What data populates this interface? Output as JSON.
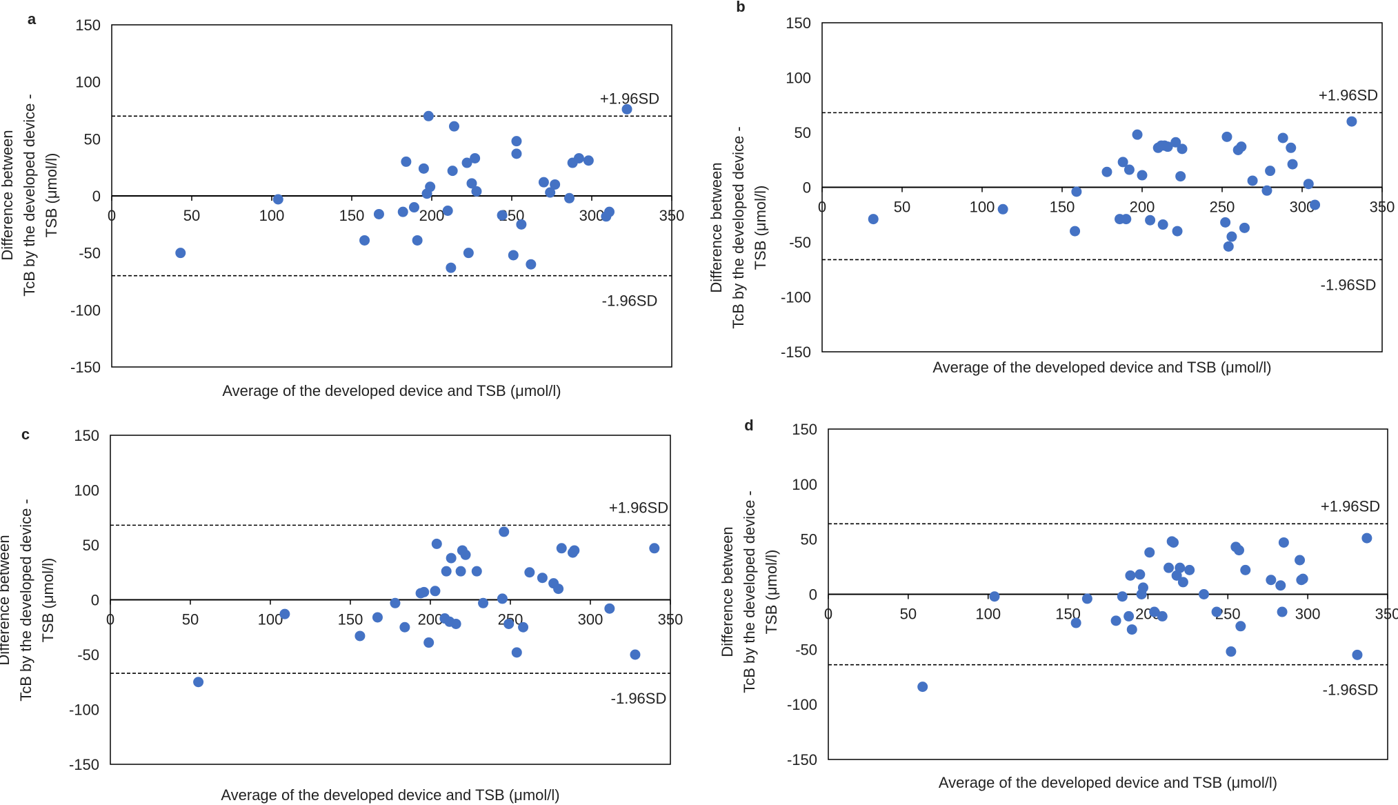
{
  "colors": {
    "point": "#4472C4",
    "axis": "#000000",
    "frame": "#000000",
    "limit_line": "#000000"
  },
  "chart_data": [
    {
      "panel": "a",
      "type": "scatter",
      "xlabel": "Average of the developed device and TSB (μmol/l)",
      "ylabel_lines": [
        "Difference between",
        "TcB by the developed device -",
        "TSB  (μmol/l)"
      ],
      "xlim": [
        0,
        350
      ],
      "ylim": [
        -150,
        150
      ],
      "xticks": [
        "0",
        "50",
        "100",
        "150",
        "200",
        "250",
        "300",
        "350"
      ],
      "yticks": [
        "150",
        "100",
        "50",
        "0",
        "-50",
        "-100",
        "-150"
      ],
      "upper_limit": 70,
      "lower_limit": -70,
      "upper_label": "+1.96SD",
      "lower_label": "-1.96SD",
      "x": [
        43,
        104,
        158,
        167,
        182,
        184,
        189,
        191,
        195,
        197,
        198,
        199,
        210,
        212,
        213,
        214,
        222,
        223,
        225,
        227,
        228,
        244,
        251,
        253,
        253,
        256,
        262,
        270,
        274,
        277,
        286,
        288,
        292,
        298,
        309,
        311,
        322
      ],
      "y": [
        -50,
        -3,
        -39,
        -16,
        -14,
        30,
        -10,
        -39,
        24,
        2,
        70,
        8,
        -13,
        -63,
        22,
        61,
        29,
        -50,
        11,
        33,
        4,
        -17,
        -52,
        48,
        37,
        -25,
        -60,
        12,
        3,
        10,
        -2,
        29,
        33,
        31,
        -18,
        -14,
        76
      ]
    },
    {
      "panel": "b",
      "type": "scatter",
      "xlabel": "Average of the developed device and TSB (μmol/l)",
      "ylabel_lines": [
        "Difference between",
        "TcB by the developed device -",
        "TSB  (μmol/l)"
      ],
      "xlim": [
        0,
        350
      ],
      "ylim": [
        -150,
        150
      ],
      "xticks": [
        "0",
        "50",
        "100",
        "150",
        "200",
        "250",
        "300",
        "350"
      ],
      "yticks": [
        "150",
        "100",
        "50",
        "0",
        "-50",
        "-100",
        "-150"
      ],
      "upper_limit": 68,
      "lower_limit": -66,
      "upper_label": "+1.96SD",
      "lower_label": "-1.96SD",
      "x": [
        32,
        113,
        158,
        159,
        178,
        186,
        188,
        190,
        192,
        197,
        200,
        205,
        210,
        212,
        213,
        214,
        216,
        221,
        222,
        224,
        225,
        252,
        253,
        254,
        256,
        260,
        262,
        264,
        269,
        278,
        280,
        288,
        293,
        294,
        304,
        308,
        331
      ],
      "y": [
        -29,
        -20,
        -40,
        -4,
        14,
        -29,
        23,
        -29,
        16,
        48,
        11,
        -30,
        36,
        38,
        -34,
        38,
        37,
        41,
        -40,
        10,
        35,
        -32,
        46,
        -54,
        -45,
        34,
        37,
        -37,
        6,
        -3,
        15,
        45,
        36,
        21,
        3,
        -16,
        60
      ]
    },
    {
      "panel": "c",
      "type": "scatter",
      "xlabel": "Average of the developed device and TSB (μmol/l)",
      "ylabel_lines": [
        "Difference between",
        "TcB by the developed device -",
        "TSB  (μmol/l)"
      ],
      "xlim": [
        0,
        350
      ],
      "ylim": [
        -150,
        150
      ],
      "xticks": [
        "0",
        "50",
        "100",
        "150",
        "200",
        "250",
        "300",
        "350"
      ],
      "yticks": [
        "150",
        "100",
        "50",
        "0",
        "-50",
        "-100",
        "-150"
      ],
      "upper_limit": 68,
      "lower_limit": -67,
      "upper_label": "+1.96SD",
      "lower_label": "-1.96SD",
      "x": [
        55,
        109,
        156,
        167,
        178,
        184,
        194,
        196,
        199,
        203,
        204,
        209,
        210,
        212,
        213,
        216,
        219,
        220,
        222,
        229,
        233,
        245,
        246,
        249,
        254,
        258,
        262,
        270,
        277,
        280,
        282,
        289,
        290,
        312,
        328,
        340
      ],
      "y": [
        -75,
        -13,
        -33,
        -16,
        -3,
        -25,
        6,
        7,
        -39,
        8,
        51,
        -17,
        26,
        -20,
        38,
        -22,
        26,
        45,
        41,
        26,
        -3,
        1,
        62,
        -22,
        -48,
        -25,
        25,
        20,
        15,
        10,
        47,
        43,
        45,
        -8,
        -50,
        47
      ]
    },
    {
      "panel": "d",
      "type": "scatter",
      "xlabel": "Average of the developed device and TSB (μmol/l)",
      "ylabel_lines": [
        "Difference between",
        "TcB by the developed device -",
        "TSB  (μmol/l)"
      ],
      "xlim": [
        0,
        350
      ],
      "ylim": [
        -150,
        150
      ],
      "xticks": [
        "0",
        "50",
        "100",
        "150",
        "200",
        "250",
        "300",
        "350"
      ],
      "yticks": [
        "150",
        "100",
        "50",
        "0",
        "-50",
        "-100",
        "-150"
      ],
      "upper_limit": 64,
      "lower_limit": -64,
      "upper_label": "+1.96SD",
      "lower_label": "-1.96SD",
      "x": [
        59,
        104,
        155,
        162,
        180,
        184,
        188,
        189,
        190,
        195,
        196,
        197,
        201,
        204,
        209,
        213,
        215,
        216,
        218,
        220,
        222,
        226,
        235,
        243,
        252,
        255,
        257,
        258,
        261,
        277,
        283,
        284,
        285,
        295,
        296,
        297,
        331,
        337
      ],
      "y": [
        -84,
        -2,
        -26,
        -4,
        -24,
        -2,
        -20,
        17,
        -32,
        18,
        0,
        6,
        38,
        -16,
        -20,
        24,
        48,
        47,
        17,
        24,
        11,
        22,
        0,
        -16,
        -52,
        43,
        40,
        -29,
        22,
        13,
        8,
        -16,
        47,
        31,
        13,
        14,
        -55,
        51
      ]
    }
  ]
}
